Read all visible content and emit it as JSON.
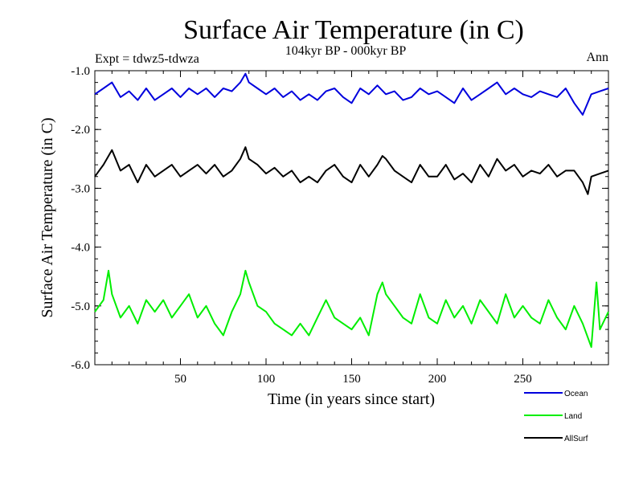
{
  "chart_data": {
    "type": "line",
    "title": "Surface Air Temperature (in C)",
    "subtitle": "104kyr BP - 000kyr BP",
    "left_annotation": "Expt = tdwz5-tdwza",
    "right_annotation": "Ann",
    "xlabel": "Time (in years since start)",
    "ylabel": "Surface Air Temperature (in C)",
    "xlim": [
      0,
      300
    ],
    "ylim": [
      -6.0,
      -1.0
    ],
    "xticks": [
      50,
      100,
      150,
      200,
      250
    ],
    "xtick_labels": [
      "50",
      "100",
      "150",
      "200",
      "250"
    ],
    "yticks": [
      -6.0,
      -5.0,
      -4.0,
      -3.0,
      -2.0,
      -1.0
    ],
    "ytick_labels": [
      "-6.0",
      "-5.0",
      "-4.0",
      "-3.0",
      "-2.0",
      "-1.0"
    ],
    "legend_position": "bottom-right",
    "series": [
      {
        "name": "Ocean",
        "color": "#0000dd",
        "x": [
          0,
          5,
          10,
          15,
          20,
          25,
          30,
          35,
          40,
          45,
          50,
          55,
          60,
          65,
          70,
          75,
          80,
          85,
          88,
          90,
          95,
          100,
          105,
          110,
          115,
          120,
          125,
          130,
          135,
          140,
          145,
          150,
          155,
          160,
          165,
          170,
          175,
          180,
          185,
          190,
          195,
          200,
          205,
          210,
          215,
          220,
          225,
          230,
          235,
          240,
          245,
          250,
          255,
          260,
          265,
          270,
          275,
          280,
          285,
          290,
          295,
          300
        ],
        "values": [
          -1.4,
          -1.3,
          -1.2,
          -1.45,
          -1.35,
          -1.5,
          -1.3,
          -1.5,
          -1.4,
          -1.3,
          -1.45,
          -1.3,
          -1.4,
          -1.3,
          -1.45,
          -1.3,
          -1.35,
          -1.2,
          -1.05,
          -1.2,
          -1.3,
          -1.4,
          -1.3,
          -1.45,
          -1.35,
          -1.5,
          -1.4,
          -1.5,
          -1.35,
          -1.3,
          -1.45,
          -1.55,
          -1.3,
          -1.4,
          -1.25,
          -1.4,
          -1.35,
          -1.5,
          -1.45,
          -1.3,
          -1.4,
          -1.35,
          -1.45,
          -1.55,
          -1.3,
          -1.5,
          -1.4,
          -1.3,
          -1.2,
          -1.4,
          -1.3,
          -1.4,
          -1.45,
          -1.35,
          -1.4,
          -1.45,
          -1.3,
          -1.55,
          -1.75,
          -1.4,
          -1.35,
          -1.3
        ]
      },
      {
        "name": "Land",
        "color": "#00ee00",
        "x": [
          0,
          5,
          8,
          10,
          15,
          20,
          25,
          30,
          35,
          40,
          45,
          50,
          55,
          60,
          65,
          70,
          75,
          80,
          85,
          88,
          90,
          95,
          100,
          105,
          110,
          115,
          120,
          125,
          130,
          135,
          140,
          145,
          150,
          155,
          160,
          165,
          168,
          170,
          175,
          180,
          185,
          190,
          195,
          200,
          205,
          210,
          215,
          220,
          225,
          230,
          235,
          240,
          245,
          250,
          255,
          260,
          265,
          270,
          275,
          280,
          285,
          290,
          293,
          295,
          300
        ],
        "values": [
          -5.1,
          -4.9,
          -4.4,
          -4.8,
          -5.2,
          -5.0,
          -5.3,
          -4.9,
          -5.1,
          -4.9,
          -5.2,
          -5.0,
          -4.8,
          -5.2,
          -5.0,
          -5.3,
          -5.5,
          -5.1,
          -4.8,
          -4.4,
          -4.6,
          -5.0,
          -5.1,
          -5.3,
          -5.4,
          -5.5,
          -5.3,
          -5.5,
          -5.2,
          -4.9,
          -5.2,
          -5.3,
          -5.4,
          -5.2,
          -5.5,
          -4.8,
          -4.6,
          -4.8,
          -5.0,
          -5.2,
          -5.3,
          -4.8,
          -5.2,
          -5.3,
          -4.9,
          -5.2,
          -5.0,
          -5.3,
          -4.9,
          -5.1,
          -5.3,
          -4.8,
          -5.2,
          -5.0,
          -5.2,
          -5.3,
          -4.9,
          -5.2,
          -5.4,
          -5.0,
          -5.3,
          -5.7,
          -4.6,
          -5.4,
          -5.1
        ]
      },
      {
        "name": "AllSurf",
        "color": "#000000",
        "x": [
          0,
          5,
          10,
          15,
          20,
          25,
          30,
          35,
          40,
          45,
          50,
          55,
          60,
          65,
          70,
          75,
          80,
          85,
          88,
          90,
          95,
          100,
          105,
          110,
          115,
          120,
          125,
          130,
          135,
          140,
          145,
          150,
          155,
          160,
          165,
          168,
          170,
          175,
          180,
          185,
          190,
          195,
          200,
          205,
          210,
          215,
          220,
          225,
          230,
          235,
          240,
          245,
          250,
          255,
          260,
          265,
          270,
          275,
          280,
          285,
          288,
          290,
          295,
          300
        ],
        "values": [
          -2.8,
          -2.6,
          -2.35,
          -2.7,
          -2.6,
          -2.9,
          -2.6,
          -2.8,
          -2.7,
          -2.6,
          -2.8,
          -2.7,
          -2.6,
          -2.75,
          -2.6,
          -2.8,
          -2.7,
          -2.5,
          -2.3,
          -2.5,
          -2.6,
          -2.75,
          -2.65,
          -2.8,
          -2.7,
          -2.9,
          -2.8,
          -2.9,
          -2.7,
          -2.6,
          -2.8,
          -2.9,
          -2.6,
          -2.8,
          -2.6,
          -2.45,
          -2.5,
          -2.7,
          -2.8,
          -2.9,
          -2.6,
          -2.8,
          -2.8,
          -2.6,
          -2.85,
          -2.75,
          -2.9,
          -2.6,
          -2.8,
          -2.5,
          -2.7,
          -2.6,
          -2.8,
          -2.7,
          -2.75,
          -2.6,
          -2.8,
          -2.7,
          -2.7,
          -2.9,
          -3.1,
          -2.8,
          -2.75,
          -2.7
        ]
      }
    ]
  }
}
